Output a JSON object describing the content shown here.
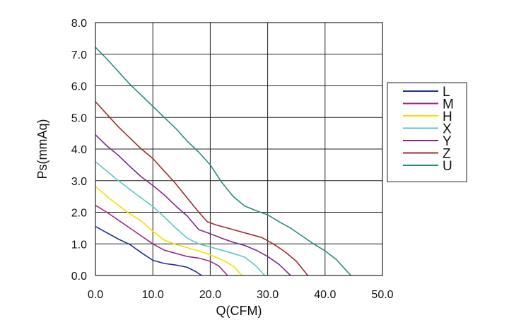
{
  "chart_data": {
    "type": "line",
    "xlabel": "Q(CFM)",
    "ylabel": "Ps(mmAq)",
    "xlim": [
      0,
      50
    ],
    "ylim": [
      0,
      8
    ],
    "x_ticks": [
      "0.0",
      "10.0",
      "20.0",
      "30.0",
      "40.0",
      "50.0"
    ],
    "y_ticks": [
      "0.0",
      "1.0",
      "2.0",
      "3.0",
      "4.0",
      "5.0",
      "6.0",
      "7.0",
      "8.0"
    ],
    "grid": true,
    "legend_position": "right",
    "series": [
      {
        "name": "L",
        "color": "#1f2f8f",
        "points": [
          [
            0,
            1.55
          ],
          [
            2,
            1.35
          ],
          [
            4,
            1.15
          ],
          [
            6,
            0.98
          ],
          [
            8,
            0.72
          ],
          [
            10,
            0.48
          ],
          [
            12,
            0.38
          ],
          [
            14,
            0.33
          ],
          [
            16,
            0.26
          ],
          [
            17.5,
            0.12
          ],
          [
            18.5,
            0.0
          ]
        ]
      },
      {
        "name": "M",
        "color": "#9a2a8a",
        "points": [
          [
            0,
            2.22
          ],
          [
            2,
            2.0
          ],
          [
            4,
            1.75
          ],
          [
            6,
            1.5
          ],
          [
            8,
            1.25
          ],
          [
            10,
            1.0
          ],
          [
            12,
            0.8
          ],
          [
            14,
            0.7
          ],
          [
            16,
            0.6
          ],
          [
            18,
            0.55
          ],
          [
            20,
            0.45
          ],
          [
            21.5,
            0.3
          ],
          [
            23,
            0.0
          ]
        ]
      },
      {
        "name": "H",
        "color": "#f5e000",
        "points": [
          [
            0,
            2.82
          ],
          [
            2,
            2.5
          ],
          [
            4,
            2.22
          ],
          [
            6,
            1.95
          ],
          [
            8,
            1.72
          ],
          [
            10,
            1.4
          ],
          [
            12,
            1.12
          ],
          [
            14,
            0.98
          ],
          [
            16,
            0.88
          ],
          [
            18,
            0.78
          ],
          [
            20,
            0.65
          ],
          [
            22,
            0.5
          ],
          [
            24,
            0.3
          ],
          [
            25.5,
            0.0
          ]
        ]
      },
      {
        "name": "X",
        "color": "#5ec8c0",
        "points": [
          [
            0,
            3.6
          ],
          [
            2,
            3.3
          ],
          [
            4,
            3.0
          ],
          [
            6,
            2.72
          ],
          [
            8,
            2.45
          ],
          [
            10,
            2.18
          ],
          [
            12,
            1.85
          ],
          [
            14,
            1.5
          ],
          [
            16,
            1.18
          ],
          [
            18,
            1.0
          ],
          [
            20,
            0.9
          ],
          [
            22,
            0.8
          ],
          [
            24,
            0.7
          ],
          [
            26,
            0.58
          ],
          [
            28,
            0.3
          ],
          [
            29.5,
            0.0
          ]
        ]
      },
      {
        "name": "Y",
        "color": "#7b2a8e",
        "points": [
          [
            0,
            4.45
          ],
          [
            2,
            4.1
          ],
          [
            4,
            3.8
          ],
          [
            6,
            3.45
          ],
          [
            8,
            3.12
          ],
          [
            10,
            2.85
          ],
          [
            12,
            2.55
          ],
          [
            14,
            2.2
          ],
          [
            16,
            1.88
          ],
          [
            18,
            1.45
          ],
          [
            20,
            1.32
          ],
          [
            22,
            1.18
          ],
          [
            24,
            1.05
          ],
          [
            26,
            0.95
          ],
          [
            28,
            0.8
          ],
          [
            30,
            0.6
          ],
          [
            32,
            0.35
          ],
          [
            34,
            0.0
          ]
        ]
      },
      {
        "name": "Z",
        "color": "#a52a2a",
        "points": [
          [
            0,
            5.5
          ],
          [
            2,
            5.1
          ],
          [
            4,
            4.7
          ],
          [
            6,
            4.35
          ],
          [
            8,
            4.0
          ],
          [
            10,
            3.7
          ],
          [
            12,
            3.3
          ],
          [
            14,
            2.9
          ],
          [
            16,
            2.45
          ],
          [
            18,
            2.0
          ],
          [
            19.5,
            1.7
          ],
          [
            21,
            1.6
          ],
          [
            23,
            1.5
          ],
          [
            25,
            1.4
          ],
          [
            27,
            1.3
          ],
          [
            29,
            1.2
          ],
          [
            31,
            1.0
          ],
          [
            33,
            0.75
          ],
          [
            35,
            0.45
          ],
          [
            37,
            0.0
          ]
        ]
      },
      {
        "name": "U",
        "color": "#2a8a80",
        "points": [
          [
            0,
            7.22
          ],
          [
            2,
            6.85
          ],
          [
            4,
            6.45
          ],
          [
            6,
            6.05
          ],
          [
            8,
            5.7
          ],
          [
            10,
            5.35
          ],
          [
            12,
            5.0
          ],
          [
            14,
            4.65
          ],
          [
            16,
            4.25
          ],
          [
            18,
            3.9
          ],
          [
            20,
            3.5
          ],
          [
            22,
            2.95
          ],
          [
            24,
            2.5
          ],
          [
            26,
            2.2
          ],
          [
            28,
            2.05
          ],
          [
            30,
            1.92
          ],
          [
            32,
            1.7
          ],
          [
            34,
            1.5
          ],
          [
            36,
            1.25
          ],
          [
            38,
            1.0
          ],
          [
            40,
            0.78
          ],
          [
            42,
            0.5
          ],
          [
            44.5,
            0.0
          ]
        ]
      }
    ]
  }
}
